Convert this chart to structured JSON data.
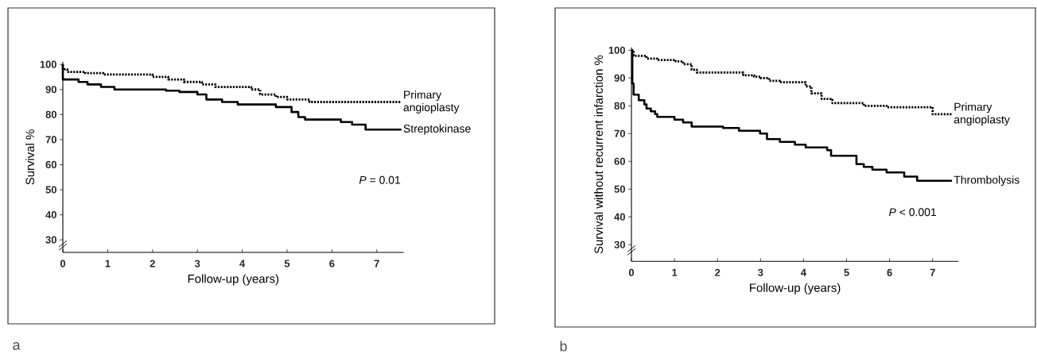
{
  "chart_data": [
    {
      "type": "step",
      "xlabel": "Follow-up (years)",
      "ylabel": "Survival %",
      "xlim": [
        0,
        7.6
      ],
      "ylim": [
        25,
        101
      ],
      "xticks": [
        0,
        1,
        2,
        3,
        4,
        5,
        6,
        7
      ],
      "yticks": [
        30,
        40,
        50,
        60,
        70,
        80,
        90,
        100
      ],
      "series": [
        {
          "name": "Primary angioplasty",
          "color": "#000000",
          "line_style": "dotted",
          "x": [
            0,
            0,
            0.1,
            0.5,
            0.9,
            2.0,
            2.35,
            2.7,
            3.1,
            3.4,
            4.2,
            4.4,
            4.75,
            5.0,
            5.5,
            7.55
          ],
          "values": [
            100,
            98,
            97,
            96.5,
            96,
            95,
            94,
            93,
            92,
            91,
            90,
            88,
            87,
            86,
            85,
            85
          ]
        },
        {
          "name": "Streptokinase",
          "color": "#000000",
          "line_style": "solid",
          "x": [
            0,
            0,
            0.35,
            0.55,
            0.85,
            1.15,
            2.3,
            2.6,
            3.0,
            3.2,
            3.55,
            3.9,
            4.75,
            5.1,
            5.25,
            5.4,
            6.2,
            6.45,
            6.75,
            7.55
          ],
          "values": [
            100,
            94,
            93,
            92,
            91,
            90,
            89.5,
            89,
            88,
            86,
            85,
            84,
            83,
            81,
            79,
            78,
            77,
            76,
            74,
            74
          ]
        }
      ],
      "annotations": [
        "*P* = 0.01",
        "a"
      ]
    },
    {
      "type": "step",
      "xlabel": "Follow-up (years)",
      "ylabel": "Survival without recurrent infarction %",
      "xlim": [
        0,
        7.6
      ],
      "ylim": [
        24,
        101
      ],
      "xticks": [
        0,
        1,
        2,
        3,
        4,
        5,
        6,
        7
      ],
      "yticks": [
        30,
        40,
        50,
        60,
        70,
        80,
        90,
        100
      ],
      "series": [
        {
          "name": "Primary angioplasty",
          "color": "#000000",
          "line_style": "dotted",
          "x": [
            0,
            0.05,
            0.35,
            0.6,
            1.03,
            1.2,
            1.4,
            1.52,
            2.6,
            2.85,
            3.0,
            3.2,
            3.45,
            4.05,
            4.18,
            4.42,
            4.67,
            5.4,
            5.93,
            7.0,
            7.45
          ],
          "values": [
            100,
            98,
            97,
            96.5,
            96,
            95,
            93,
            92,
            91,
            90.5,
            90,
            89,
            88.5,
            87,
            84.5,
            82.5,
            81,
            80,
            79.5,
            77,
            77
          ]
        },
        {
          "name": "Thrombolysis",
          "color": "#000000",
          "line_style": "solid",
          "x": [
            0,
            0.02,
            0.05,
            0.17,
            0.3,
            0.35,
            0.45,
            0.55,
            0.6,
            1.0,
            1.2,
            1.4,
            2.13,
            2.5,
            2.99,
            3.15,
            3.45,
            3.8,
            4.05,
            4.55,
            4.64,
            5.23,
            5.4,
            5.6,
            5.93,
            6.34,
            6.64,
            7.45
          ],
          "values": [
            100,
            88,
            84,
            82,
            80.5,
            79,
            78,
            77,
            76,
            75,
            74,
            72.5,
            72,
            71,
            70,
            68,
            67,
            66,
            65,
            64,
            62,
            59,
            58,
            57,
            56,
            54.5,
            53,
            53
          ]
        }
      ],
      "annotations": [
        "*P* < 0.001",
        "b"
      ]
    }
  ]
}
